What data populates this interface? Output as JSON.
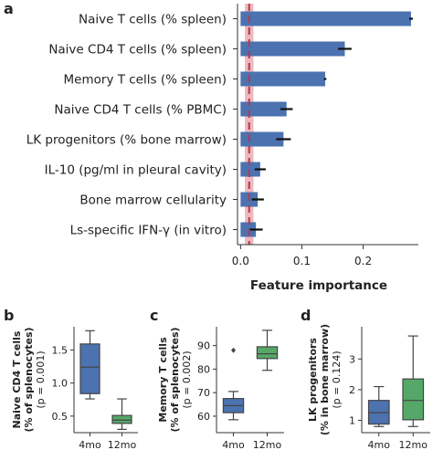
{
  "panel_letters": {
    "a": "a",
    "b": "b",
    "c": "c",
    "d": "d"
  },
  "chart_data": [
    {
      "panel": "a",
      "type": "bar",
      "orientation": "horizontal",
      "xlabel": "Feature importance",
      "xlim": [
        -0.005,
        0.29
      ],
      "xticks": [
        0.0,
        0.1,
        0.2
      ],
      "xtick_labels": [
        "0.0",
        "0.1",
        "0.2"
      ],
      "reference_line": {
        "value": 0.014,
        "band": [
          0.007,
          0.021
        ],
        "style": "dashed",
        "color": "#b23a48"
      },
      "bar_color": "#4c72b0",
      "categories": [
        "Naive T cells (% spleen)",
        "Naive CD4 T cells (% spleen)",
        "Memory T cells (% spleen)",
        "Naive CD4 T cells (% PBMC)",
        "LK progenitors (% bone marrow)",
        "IL-10 (pg/ml in pleural cavity)",
        "Bone marrow cellularity",
        "Ls-specific IFN-γ (in vitro)"
      ],
      "values": [
        0.278,
        0.17,
        0.138,
        0.075,
        0.07,
        0.032,
        0.028,
        0.025
      ],
      "errors": [
        0.003,
        0.011,
        0.002,
        0.01,
        0.012,
        0.009,
        0.01,
        0.011
      ]
    },
    {
      "panel": "b",
      "type": "box",
      "ylabel_lines": [
        "Naive CD4 T cells",
        "(% of splenocytes)",
        "(p = 0.001)"
      ],
      "ylim": [
        0.25,
        1.85
      ],
      "yticks": [
        0.5,
        1.0,
        1.5
      ],
      "ytick_labels": [
        "0.5",
        "1.0",
        "1.5"
      ],
      "categories": [
        "4mo",
        "12mo"
      ],
      "boxes": [
        {
          "whislo": 0.76,
          "q1": 0.84,
          "med": 1.24,
          "q3": 1.59,
          "whishi": 1.79,
          "fliers": [],
          "color": "#4c72b0"
        },
        {
          "whislo": 0.3,
          "q1": 0.39,
          "med": 0.44,
          "q3": 0.51,
          "whishi": 0.76,
          "fliers": [],
          "color": "#55a868"
        }
      ]
    },
    {
      "panel": "c",
      "type": "box",
      "ylabel_lines": [
        "Memory T cells",
        "(% of splenocytes)",
        "(p = 0.002)"
      ],
      "ylim": [
        53,
        98
      ],
      "yticks": [
        60,
        70,
        80,
        90
      ],
      "ytick_labels": [
        "60",
        "70",
        "80",
        "90"
      ],
      "categories": [
        "4mo",
        "12mo"
      ],
      "boxes": [
        {
          "whislo": 58.5,
          "q1": 61.5,
          "med": 64.5,
          "q3": 67.5,
          "whishi": 70.5,
          "fliers": [
            88
          ],
          "color": "#4c72b0"
        },
        {
          "whislo": 79.5,
          "q1": 84.5,
          "med": 86.5,
          "q3": 89.5,
          "whishi": 96.5,
          "fliers": [],
          "color": "#55a868"
        }
      ]
    },
    {
      "panel": "d",
      "type": "box",
      "ylabel_lines": [
        "LK progenitors",
        "(% in bone marrow)",
        "(p = 0.124)"
      ],
      "ylim": [
        0.6,
        4.05
      ],
      "yticks": [
        1,
        2,
        3
      ],
      "ytick_labels": [
        "1",
        "2",
        "3"
      ],
      "categories": [
        "4mo",
        "12mo"
      ],
      "boxes": [
        {
          "whislo": 0.8,
          "q1": 0.88,
          "med": 1.25,
          "q3": 1.65,
          "whishi": 2.1,
          "fliers": [],
          "color": "#4c72b0"
        },
        {
          "whislo": 0.8,
          "q1": 1.02,
          "med": 1.65,
          "q3": 2.35,
          "whishi": 3.75,
          "fliers": [],
          "color": "#55a868"
        }
      ]
    }
  ]
}
